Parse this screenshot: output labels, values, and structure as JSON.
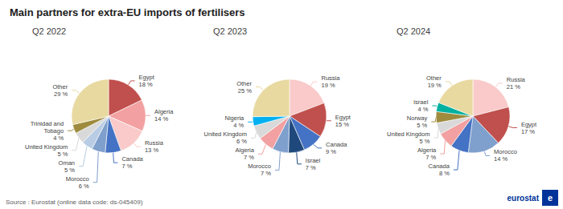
{
  "title": "Main partners for extra-EU imports of fertilisers",
  "annotations": [
    {
      "text": "Source : Eurostat (online data code: ds-045409)"
    },
    {
      "text": "eurostat",
      "color": "#003399"
    },
    {
      "text": "e",
      "color": "#003399"
    }
  ],
  "chart_data": [
    {
      "type": "pie",
      "title": "Q2 2022",
      "data_labels": true,
      "categories": [
        "Egypt",
        "Algeria",
        "Russia",
        "Canada",
        "Morocco",
        "Oman",
        "United Kingdom",
        "Trinidad and\nTobago",
        "Other"
      ],
      "values": [
        18,
        14,
        13,
        7,
        6,
        5,
        5,
        4,
        29
      ],
      "value_labels": [
        "18 %",
        "14 %",
        "13 %",
        "7 %",
        "6 %",
        "5 %",
        "5 %",
        "4 %",
        "29 %"
      ],
      "colors": [
        "#c0504d",
        "#f2a0a1",
        "#f9cac9",
        "#4472c4",
        "#7f9fcc",
        "#b8cce4",
        "#d9d9d9",
        "#9e8b3e",
        "#e8d9a0"
      ]
    },
    {
      "type": "pie",
      "title": "Q2 2023",
      "data_labels": true,
      "categories": [
        "Russia",
        "Egypt",
        "Canada",
        "Israel",
        "Morocco",
        "Algeria",
        "United Kingdom",
        "Nigeria",
        "Other"
      ],
      "values": [
        19,
        15,
        9,
        7,
        7,
        7,
        6,
        4,
        25
      ],
      "value_labels": [
        "19 %",
        "15 %",
        "9 %",
        "7 %",
        "7 %",
        "7 %",
        "6 %",
        "4 %",
        "25 %"
      ],
      "colors": [
        "#f9cac9",
        "#c0504d",
        "#4472c4",
        "#1f497d",
        "#7f9fcc",
        "#f2a0a1",
        "#d9d9d9",
        "#00b0f0",
        "#e8d9a0"
      ]
    },
    {
      "type": "pie",
      "title": "Q2 2024",
      "data_labels": true,
      "categories": [
        "Russia",
        "Egypt",
        "Morocco",
        "Canada",
        "Algeria",
        "United Kingdom",
        "Norway",
        "Israel",
        "Other"
      ],
      "values": [
        21,
        17,
        14,
        8,
        7,
        5,
        5,
        4,
        19
      ],
      "value_labels": [
        "21 %",
        "17 %",
        "14 %",
        "8 %",
        "7 %",
        "5 %",
        "5 %",
        "4 %",
        "19 %"
      ],
      "colors": [
        "#f9cac9",
        "#c0504d",
        "#7f9fcc",
        "#4472c4",
        "#f2a0a1",
        "#d9d9d9",
        "#9e8b3e",
        "#00b0a0",
        "#e8d9a0"
      ]
    }
  ]
}
